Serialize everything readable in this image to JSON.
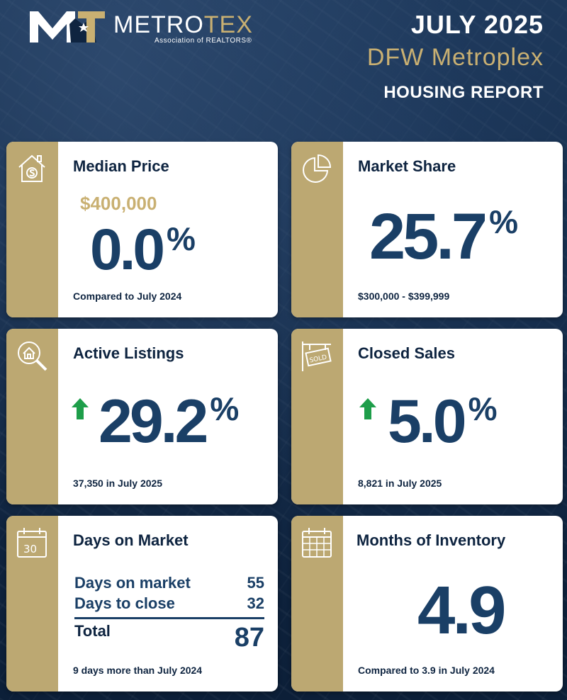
{
  "header": {
    "brand_part1": "METRO",
    "brand_part2": "TEX",
    "brand_subtitle": "Association of REALTORS®",
    "logo_monogram": "MT",
    "date": "JULY 2025",
    "region": "DFW Metroplex",
    "report": "HOUSING REPORT"
  },
  "colors": {
    "navy": "#0e2440",
    "value_blue": "#1a3f66",
    "gold": "#c9b072",
    "strip_gold": "#bca872",
    "up_green": "#1e9e4a"
  },
  "cards": {
    "median_price": {
      "icon": "house-dollar-icon",
      "title": "Median Price",
      "price": "$400,000",
      "value": "0.0",
      "unit": "%",
      "note": "Compared to July 2024"
    },
    "market_share": {
      "icon": "pie-chart-icon",
      "title": "Market Share",
      "value": "25.7",
      "unit": "%",
      "note": "$300,000 - $399,999"
    },
    "active_listings": {
      "icon": "house-magnifier-icon",
      "title": "Active Listings",
      "trend_icon": "up-arrow-icon",
      "value": "29.2",
      "unit": "%",
      "note": "37,350 in July 2025"
    },
    "closed_sales": {
      "icon": "sold-sign-icon",
      "title": "Closed Sales",
      "trend_icon": "up-arrow-icon",
      "value": "5.0",
      "unit": "%",
      "note": "8,821 in July 2025"
    },
    "days_on_market": {
      "icon": "calendar-30-icon",
      "icon_text": "30",
      "title": "Days on Market",
      "rows": [
        {
          "label": "Days on market",
          "value": "55"
        },
        {
          "label": "Days to close",
          "value": "32"
        }
      ],
      "total_label": "Total",
      "total_value": "87",
      "note": "9 days more than July 2024"
    },
    "months_inventory": {
      "icon": "calendar-grid-icon",
      "title": "Months of Inventory",
      "value": "4.9",
      "note": "Compared to 3.9 in July 2024"
    }
  }
}
